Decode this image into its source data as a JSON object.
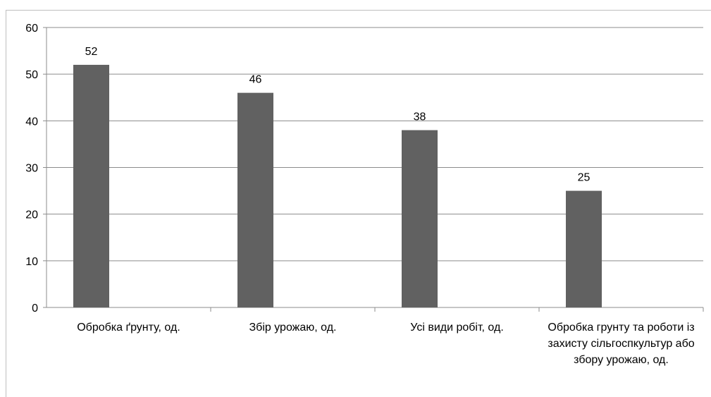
{
  "chart_data": {
    "type": "bar",
    "title": "",
    "xlabel": "",
    "ylabel": "",
    "categories": [
      "Обробка ґрунту, од.",
      "Збір урожаю, од.",
      "Усі види робіт, од.",
      "Обробка грунту та роботи із захисту сільгоспкультур або збору урожаю, од."
    ],
    "values": [
      52,
      46,
      38,
      25
    ],
    "data_labels": [
      "52",
      "46",
      "38",
      "25"
    ],
    "ylim": [
      0,
      60
    ],
    "yticks": [
      "0",
      "10",
      "20",
      "30",
      "40",
      "50",
      "60"
    ],
    "grid": true,
    "legend": "none",
    "bar_color": "#616161",
    "grid_color": "#8c8c8c"
  }
}
